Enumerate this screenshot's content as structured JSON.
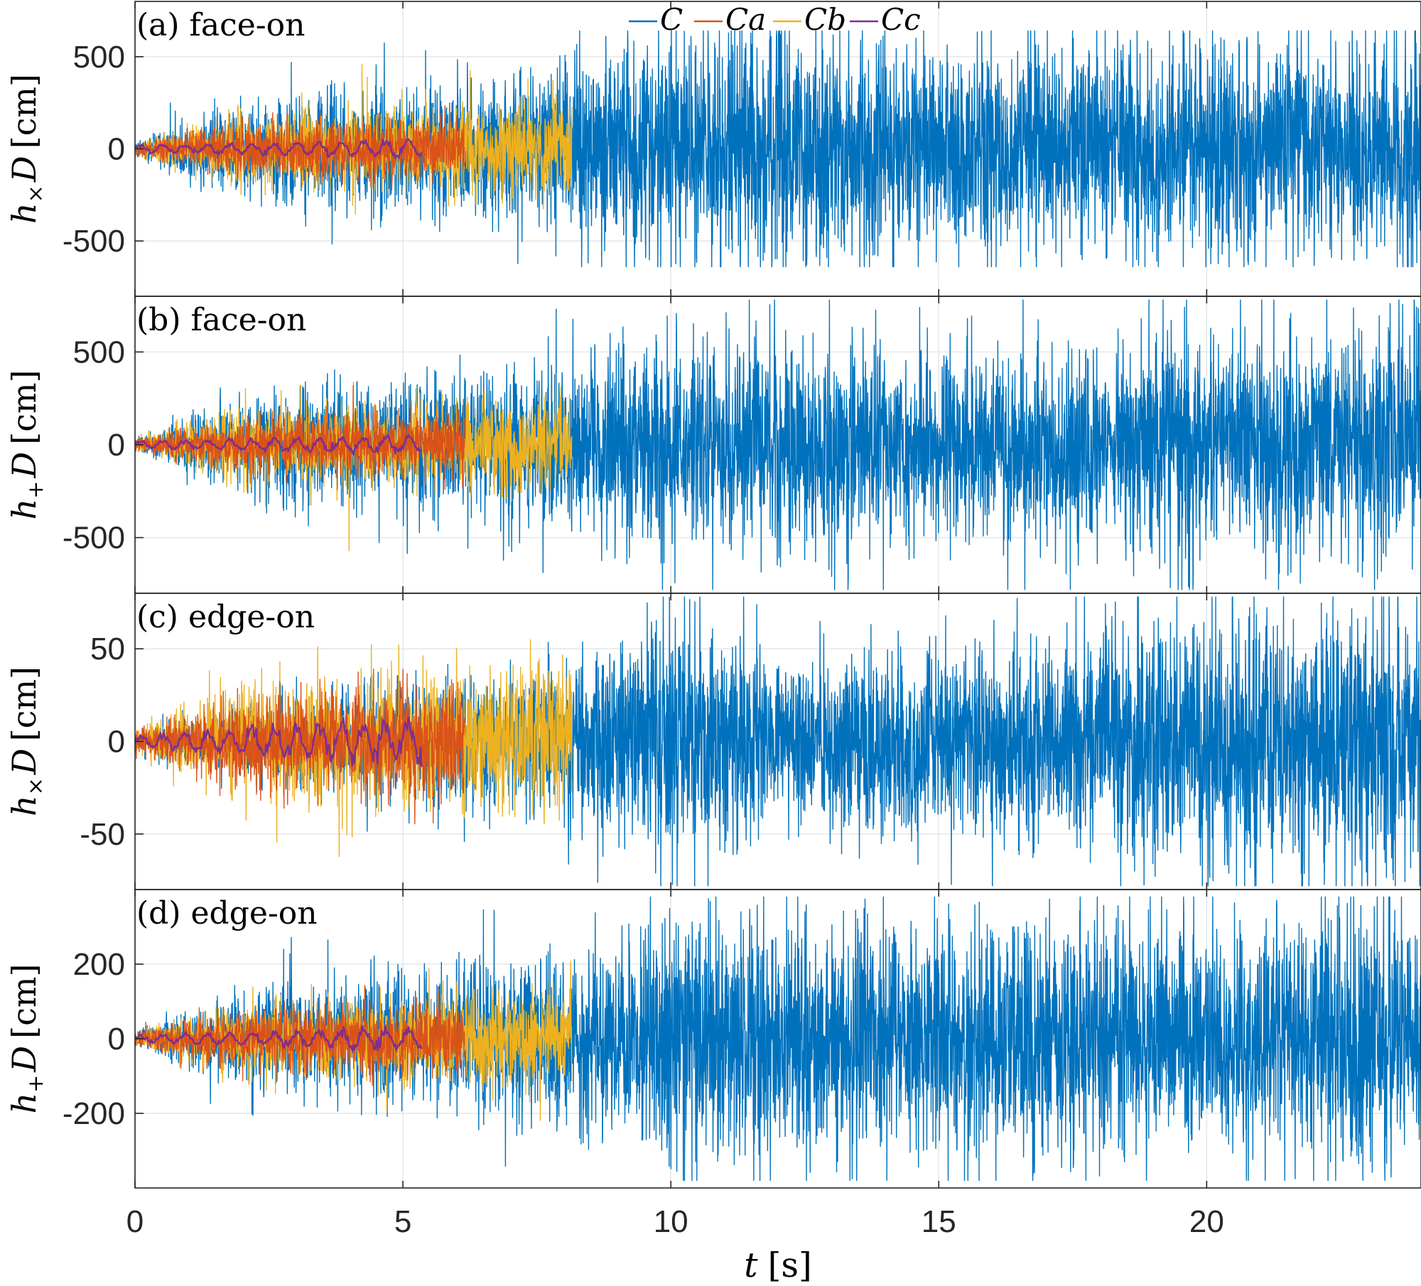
{
  "colors": {
    "C": "#0072BD",
    "Ca": "#D95319",
    "Cb": "#EDB120",
    "Cc": "#7E2F8E",
    "grid": "#e6e6e6",
    "axis": "#262626"
  },
  "chart_data": {
    "type": "line",
    "xlabel": "t [s]",
    "xlim": [
      0,
      24
    ],
    "xticks": [
      "0",
      "5",
      "10",
      "15",
      "20"
    ],
    "legend": {
      "placement": "top-center of panel (a)",
      "entries": [
        "C",
        "Ca",
        "Cb",
        "Cc"
      ]
    },
    "series_info": [
      {
        "name": "C",
        "t_end": 24.0,
        "color": "#0072BD"
      },
      {
        "name": "Ca",
        "t_end": 6.15,
        "color": "#D95319"
      },
      {
        "name": "Cb",
        "t_end": 8.15,
        "color": "#EDB120"
      },
      {
        "name": "Cc",
        "t_end": 5.35,
        "color": "#7E2F8E"
      }
    ],
    "panels": [
      {
        "id": "a",
        "title": "(a) face-on",
        "ylabel": "h× D [cm]",
        "ylim": [
          -800,
          800
        ],
        "yticks": [
          "-500",
          "0",
          "500"
        ],
        "envelope_C": {
          "t": [
            0,
            2,
            5,
            8,
            10,
            15,
            20,
            24
          ],
          "amp": [
            20,
            150,
            200,
            250,
            380,
            320,
            330,
            360
          ]
        },
        "envelope_Ca": {
          "t": [
            0,
            2,
            6.15
          ],
          "amp": [
            20,
            80,
            100
          ]
        },
        "envelope_Cb": {
          "t": [
            0,
            2,
            8.15
          ],
          "amp": [
            20,
            110,
            150
          ]
        },
        "envelope_Cc": {
          "t": [
            0,
            5.35
          ],
          "amp": [
            15,
            40
          ]
        },
        "peak_approx": 640
      },
      {
        "id": "b",
        "title": "(b) face-on",
        "ylabel": "h+ D [cm]",
        "ylim": [
          -800,
          800
        ],
        "yticks": [
          "-500",
          "0",
          "500"
        ],
        "envelope_C": {
          "t": [
            0,
            2,
            5,
            8,
            10,
            15,
            20,
            24
          ],
          "amp": [
            20,
            140,
            200,
            250,
            340,
            300,
            330,
            370
          ]
        },
        "envelope_Ca": {
          "t": [
            0,
            2,
            6.15
          ],
          "amp": [
            20,
            80,
            100
          ]
        },
        "envelope_Cb": {
          "t": [
            0,
            2,
            8.15
          ],
          "amp": [
            20,
            110,
            150
          ]
        },
        "envelope_Cc": {
          "t": [
            0,
            5.35
          ],
          "amp": [
            15,
            40
          ]
        },
        "peak_approx": 780
      },
      {
        "id": "c",
        "title": "(c) edge-on",
        "ylabel": "h× D [cm]",
        "ylim": [
          -80,
          80
        ],
        "yticks": [
          "-50",
          "0",
          "50"
        ],
        "envelope_C": {
          "t": [
            0,
            2,
            5,
            8,
            10,
            12,
            15,
            20,
            24
          ],
          "amp": [
            3,
            12,
            18,
            22,
            40,
            25,
            28,
            40,
            42
          ]
        },
        "envelope_Ca": {
          "t": [
            0,
            2,
            6.15
          ],
          "amp": [
            4,
            14,
            18
          ]
        },
        "envelope_Cb": {
          "t": [
            0,
            2,
            8.15
          ],
          "amp": [
            4,
            18,
            22
          ]
        },
        "envelope_Cc": {
          "t": [
            0,
            5.35
          ],
          "amp": [
            3,
            10
          ]
        },
        "peak_approx": 78
      },
      {
        "id": "d",
        "title": "(d) edge-on",
        "ylabel": "h+ D [cm]",
        "ylim": [
          -400,
          400
        ],
        "yticks": [
          "-200",
          "0",
          "200"
        ],
        "envelope_C": {
          "t": [
            0,
            2,
            5,
            8,
            10,
            15,
            20,
            24
          ],
          "amp": [
            10,
            70,
            100,
            130,
            180,
            170,
            180,
            190
          ]
        },
        "envelope_Ca": {
          "t": [
            0,
            2,
            6.15
          ],
          "amp": [
            10,
            45,
            55
          ]
        },
        "envelope_Cb": {
          "t": [
            0,
            2,
            8.15
          ],
          "amp": [
            10,
            55,
            75
          ]
        },
        "envelope_Cc": {
          "t": [
            0,
            5.35
          ],
          "amp": [
            8,
            25
          ]
        },
        "peak_approx": 380
      }
    ]
  }
}
